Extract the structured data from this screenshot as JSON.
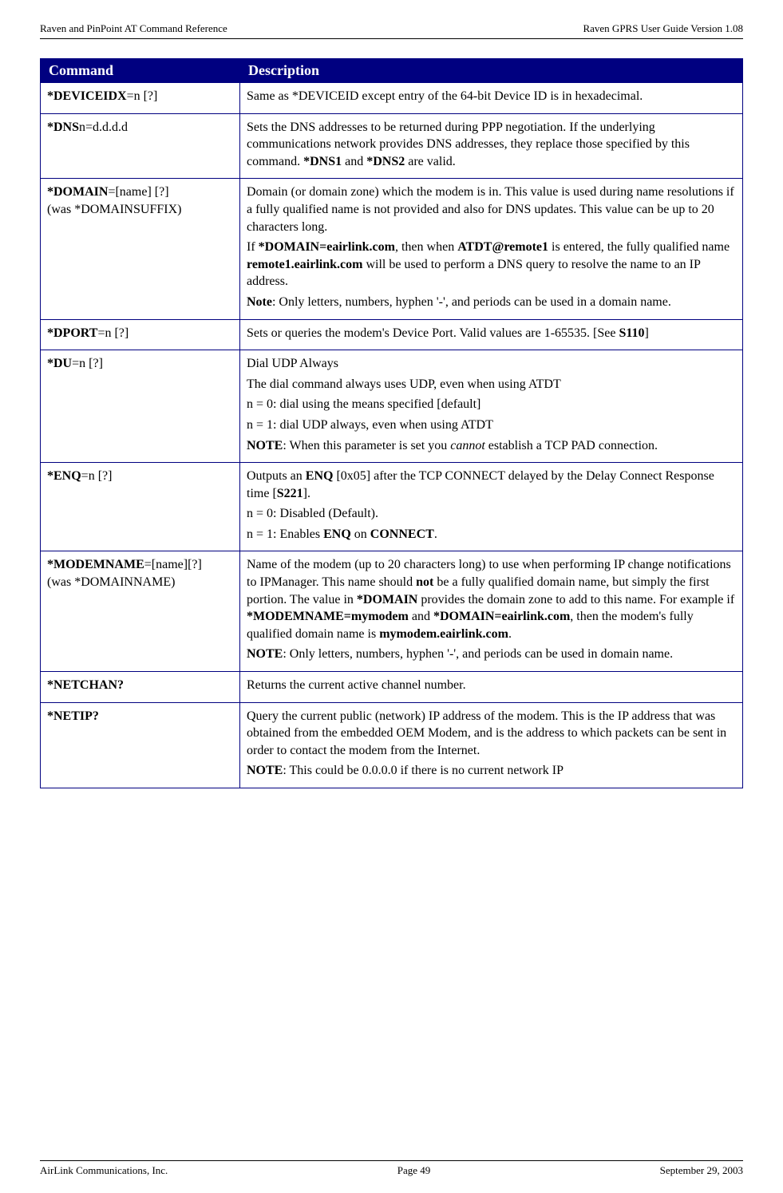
{
  "header": {
    "left": "Raven and PinPoint AT Command Reference",
    "right": "Raven GPRS User Guide Version 1.08"
  },
  "table": {
    "columns": {
      "c1": "Command",
      "c2": "Description"
    },
    "rows": {
      "r0": {
        "cmd_b": "*DEVICEIDX",
        "cmd_r": "=n [?]",
        "desc0": "Same as *DEVICEID except entry of the 64-bit Device ID is in hexadecimal."
      },
      "r1": {
        "cmd_b": "*DNS",
        "cmd_r": "n=d.d.d.d",
        "desc0a": "Sets the DNS addresses to be returned during PPP negotiation. If the underlying communications network provides DNS addresses, they replace those specified by this command. ",
        "desc0b": "*DNS1",
        "desc0c": " and ",
        "desc0d": "*DNS2",
        "desc0e": " are valid."
      },
      "r2": {
        "cmd_b": "*DOMAIN",
        "cmd_r": "=[name] [?]",
        "cmd2": "(was *DOMAINSUFFIX)",
        "d1": "Domain (or domain zone) which the modem is in. This value is used during name resolutions if a fully qualified name is not provided and also for DNS updates. This value can be up to 20 characters long.",
        "d2a": "If ",
        "d2b": "*DOMAIN=eairlink.com",
        "d2c": ", then when ",
        "d2d": "ATDT@remote1",
        "d2e": " is entered, the fully qualified name ",
        "d2f": "remote1.eairlink.com",
        "d2g": " will be used to perform a DNS query to resolve the name to an IP address.",
        "d3a": "Note",
        "d3b": ": Only letters, numbers, hyphen '-', and periods can be used in a domain name."
      },
      "r3": {
        "cmd_b": "*DPORT",
        "cmd_r": "=n [?]",
        "d1a": "Sets or queries the modem's Device Port. Valid values are 1-65535. [See ",
        "d1b": "S110",
        "d1c": "]"
      },
      "r4": {
        "cmd_b": "*DU",
        "cmd_r": "=n [?]",
        "d1": "Dial UDP Always",
        "d2": "The dial command always uses UDP, even when using ATDT",
        "d3": "n = 0: dial using the means specified [default]",
        "d4": "n = 1: dial UDP always, even when using ATDT",
        "d5a": "NOTE",
        "d5b": ": When this parameter is set you ",
        "d5c": "cannot",
        "d5d": " establish a TCP PAD connection."
      },
      "r5": {
        "cmd_b": "*ENQ",
        "cmd_r": "=n [?]",
        "d1a": "Outputs an ",
        "d1b": "ENQ",
        "d1c": " [0x05] after the TCP CONNECT delayed by the Delay Connect Response time [",
        "d1d": "S221",
        "d1e": "].",
        "d2": "n = 0: Disabled (Default).",
        "d3a": "n = 1: Enables ",
        "d3b": "ENQ",
        "d3c": " on ",
        "d3d": "CONNECT",
        "d3e": "."
      },
      "r6": {
        "cmd_b": "*MODEMNAME",
        "cmd_r": "=[name][?]",
        "cmd2": "(was *DOMAINNAME)",
        "d1a": "Name of the modem (up to 20 characters long) to use when performing IP change notifications to IPManager. This name should ",
        "d1b": "not",
        "d1c": " be a fully qualified domain name, but simply the first portion. The value in ",
        "d1d": "*DOMAIN",
        "d1e": " provides the domain zone to add to this name. For example if ",
        "d1f": "*MODEMNAME=mymodem",
        "d1g": " and ",
        "d1h": "*DOMAIN=eairlink.com",
        "d1i": ", then the modem's fully qualified domain name is ",
        "d1j": "mymodem.eairlink.com",
        "d1k": ".",
        "d2a": "NOTE",
        "d2b": ": Only letters, numbers, hyphen '-', and periods can be used in domain name."
      },
      "r7": {
        "cmd_b": "*NETCHAN?",
        "d1": "Returns the current active channel number."
      },
      "r8": {
        "cmd_b": "*NETIP?",
        "d1": "Query the current public (network) IP address of the modem. This is the IP address that was obtained from the embedded OEM Modem, and is the address to which packets can be sent in order to contact the modem from the Internet.",
        "d2a": "NOTE",
        "d2b": ": This could be 0.0.0.0 if there is no current network IP"
      }
    }
  },
  "footer": {
    "left": "AirLink Communications, Inc.",
    "center": "Page 49",
    "right": "September 29, 2003"
  }
}
